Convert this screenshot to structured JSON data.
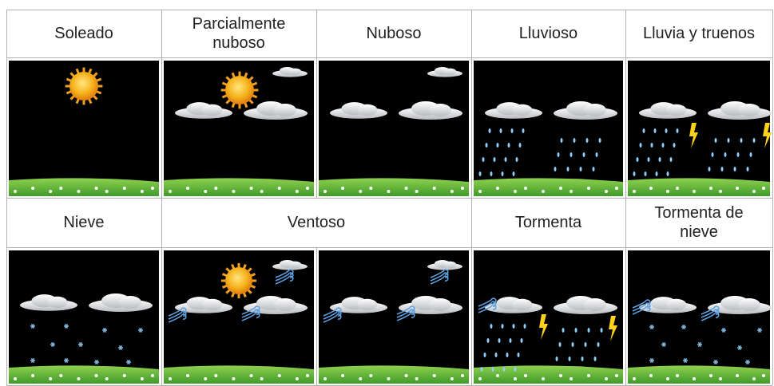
{
  "table": {
    "header_rows": [
      [
        "Soleado",
        "Parcialmente nuboso",
        "Nuboso",
        "Lluvioso",
        "Lluvia y truenos"
      ],
      [
        "Nieve",
        "Ventoso",
        "Tormenta",
        "Tormenta de nieve"
      ]
    ]
  }
}
